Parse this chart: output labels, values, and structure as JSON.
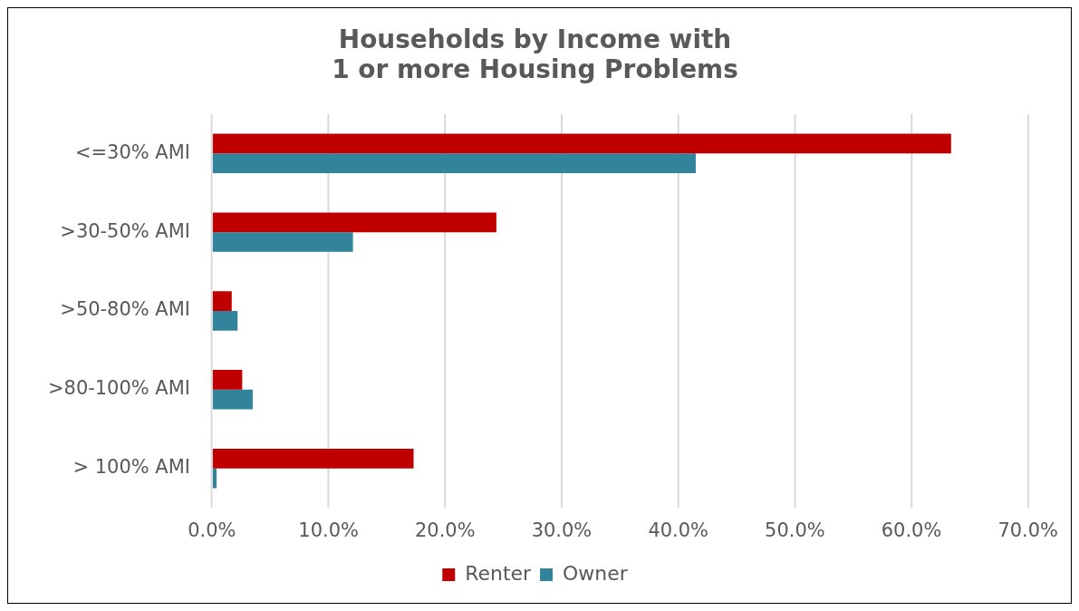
{
  "chart_data": {
    "type": "bar",
    "orientation": "horizontal",
    "title": "Households by Income with\n1 or more Housing Problems",
    "categories": [
      "<=30% AMI",
      ">30-50% AMI",
      ">50-80% AMI",
      ">80-100% AMI",
      "> 100% AMI"
    ],
    "series": [
      {
        "name": "Renter",
        "color": "#c00000",
        "values": [
          63.4,
          24.4,
          1.7,
          2.6,
          17.3
        ]
      },
      {
        "name": "Owner",
        "color": "#31849b",
        "values": [
          41.5,
          12.1,
          2.2,
          3.5,
          0.4
        ]
      }
    ],
    "xlim": [
      0,
      70
    ],
    "xticks": [
      {
        "value": 0,
        "label": "0.0%"
      },
      {
        "value": 10,
        "label": "10.0%"
      },
      {
        "value": 20,
        "label": "20.0%"
      },
      {
        "value": 30,
        "label": "30.0%"
      },
      {
        "value": 40,
        "label": "40.0%"
      },
      {
        "value": 50,
        "label": "50.0%"
      },
      {
        "value": 60,
        "label": "60.0%"
      },
      {
        "value": 70,
        "label": "70.0%"
      }
    ],
    "grid": "x",
    "legend": "bottom"
  }
}
